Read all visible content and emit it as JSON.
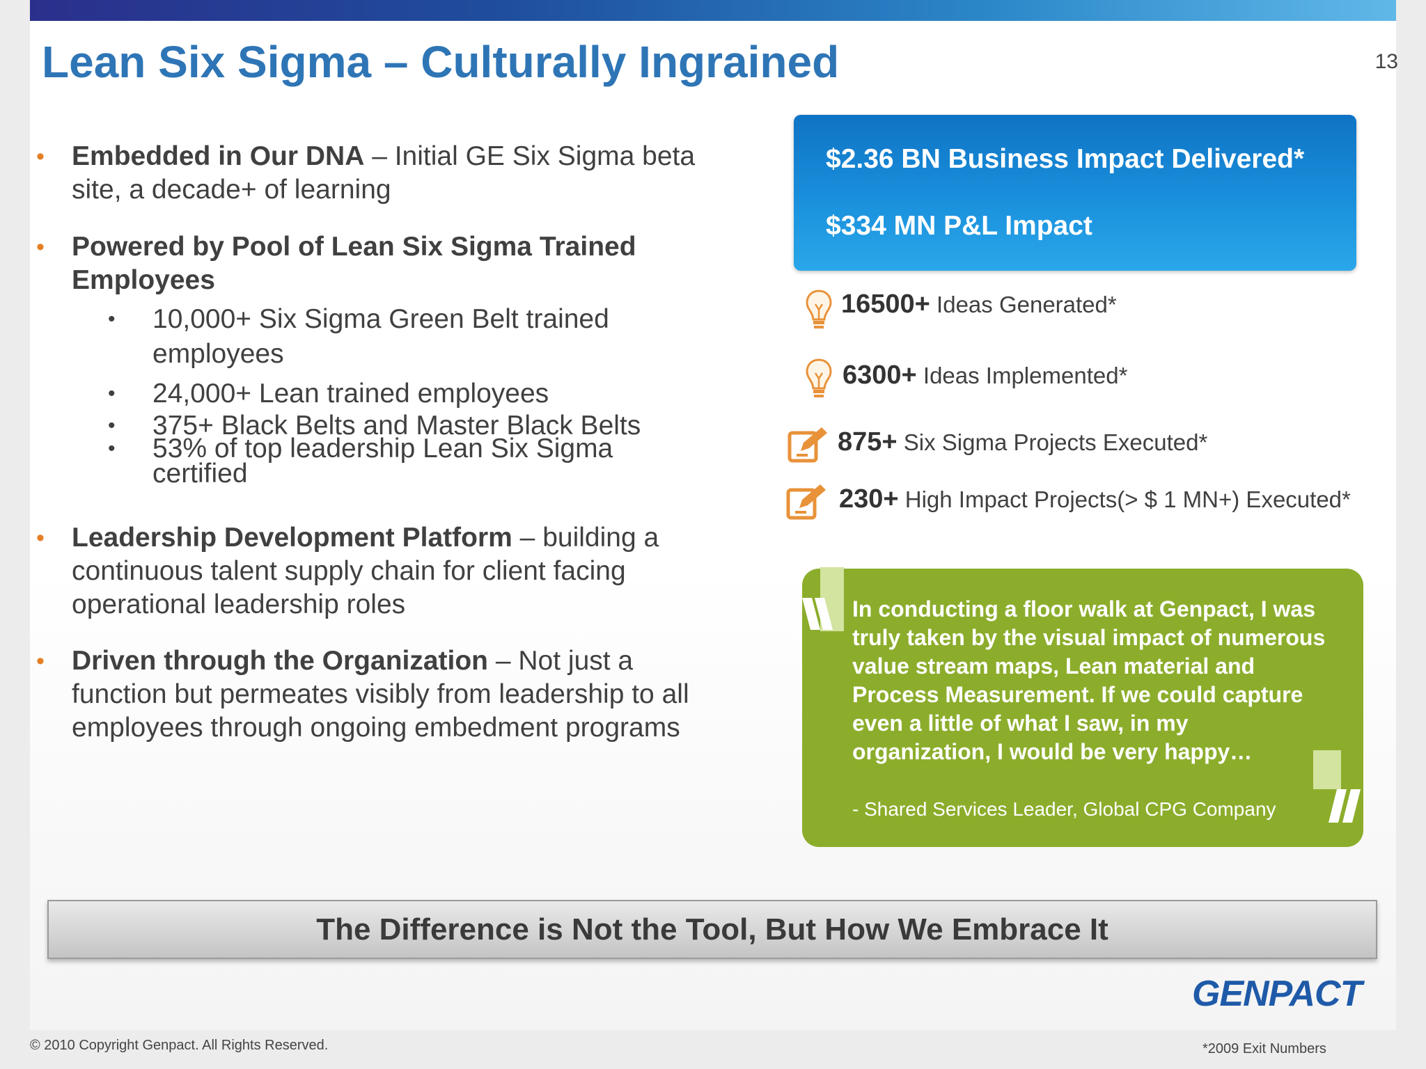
{
  "title": "Lean Six Sigma – Culturally Ingrained",
  "page_number": "13",
  "bullets": [
    {
      "bold": "Embedded in Our DNA",
      "rest": " – Initial GE Six Sigma beta site, a decade+ of learning"
    },
    {
      "bold": "Powered by Pool of Lean Six Sigma Trained Employees",
      "rest": ""
    },
    {
      "bold": "Leadership Development Platform",
      "rest": " – building a continuous talent supply chain for client facing operational leadership roles"
    },
    {
      "bold": "Driven through the Organization",
      "rest": " – Not just a function but permeates visibly from leadership to all employees through ongoing embedment programs"
    }
  ],
  "sub_bullets": [
    "10,000+ Six Sigma Green Belt trained employees",
    "24,000+ Lean trained employees",
    "375+ Black Belts and  Master Black Belts",
    "53% of top leadership Lean Six Sigma certified"
  ],
  "impact": {
    "line1": "$2.36 BN Business Impact Delivered*",
    "line2": "$334 MN P&L Impact"
  },
  "stats": [
    {
      "number": "16500+",
      "label": " Ideas Generated*",
      "icon": "lightbulb-icon"
    },
    {
      "number": "6300+",
      "label": " Ideas Implemented*",
      "icon": "lightbulb-icon"
    },
    {
      "number": "875+",
      "label": " Six Sigma Projects Executed*",
      "icon": "edit-icon"
    },
    {
      "number": "230+",
      "label": " High Impact Projects(> $ 1 MN+) Executed*",
      "icon": "edit-icon"
    }
  ],
  "quote": {
    "text": "In conducting a floor walk at Genpact, I was truly taken by the visual impact of numerous value stream maps, Lean material and Process Measurement. If we could capture even a little of what I saw, in my organization, I would be very happy…",
    "author": "- Shared Services Leader, Global CPG Company"
  },
  "tagline": "The Difference is Not the Tool, But How We Embrace It",
  "logo": "GENPACT",
  "copyright": "© 2010 Copyright Genpact. All Rights Reserved.",
  "footnote": "*2009 Exit Numbers",
  "colors": {
    "accent_blue": "#2e75b6",
    "bullet_orange": "#e57f25",
    "quote_green": "#8cad2c",
    "icon_orange": "#e8923a"
  }
}
